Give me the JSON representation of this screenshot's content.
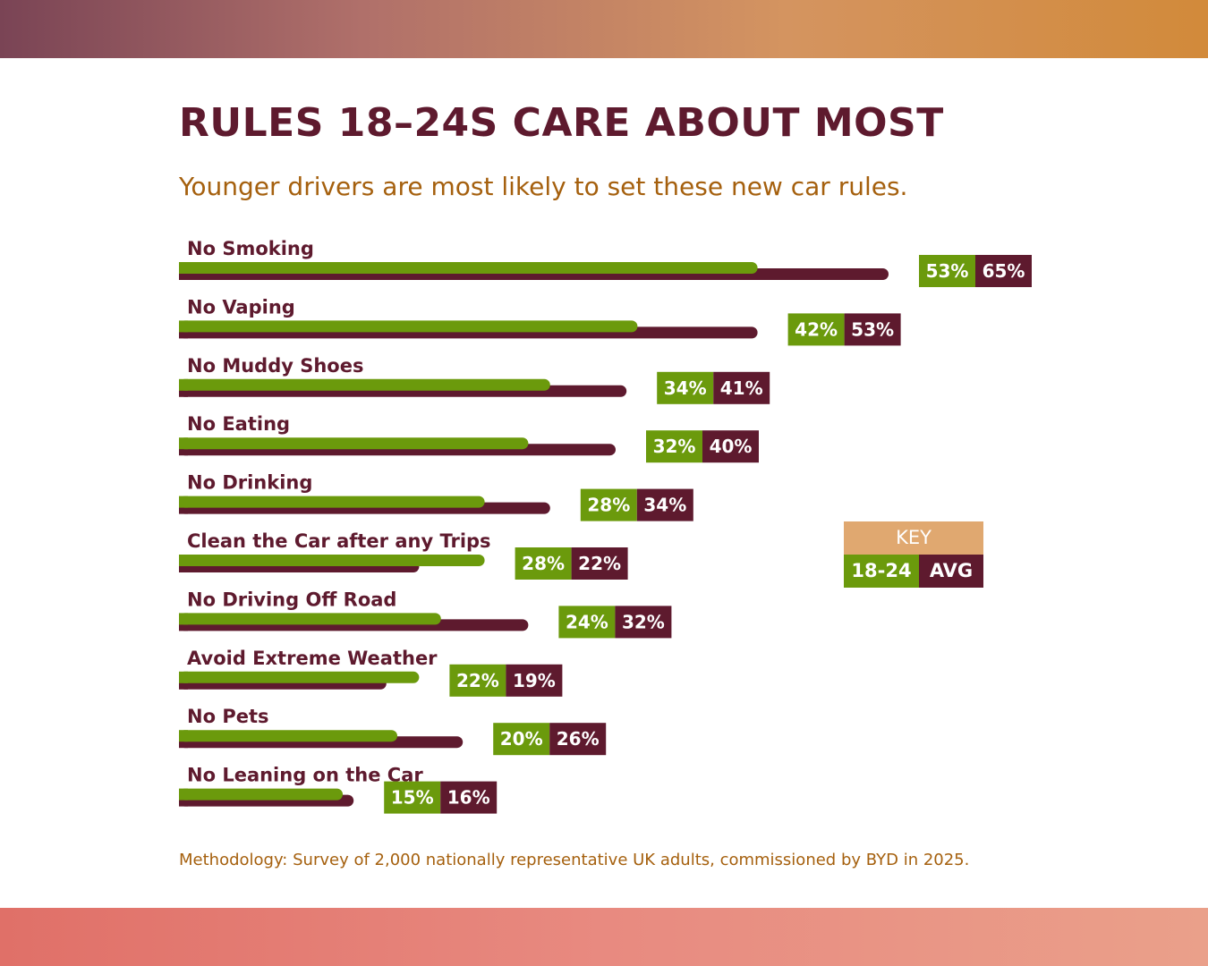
{
  "header": {
    "title": "RULES 18–24S CARE ABOUT MOST",
    "subtitle": "Younger drivers are most likely to set these new car rules."
  },
  "key": {
    "heading": "KEY",
    "young_label": "18-24",
    "avg_label": "AVG"
  },
  "methodology": {
    "label": "Methodology:",
    "text": "Survey of 2,000 nationally representative UK adults, commissioned by BYD in 2025."
  },
  "colors": {
    "young": "#6b9a0c",
    "avg": "#5e1a2e",
    "label_text": "#5e1a2e"
  },
  "chart_data": {
    "type": "bar",
    "orientation": "horizontal",
    "title": "RULES 18–24S CARE ABOUT MOST",
    "subtitle": "Younger drivers are most likely to set these new car rules.",
    "unit": "%",
    "categories": [
      "No Smoking",
      "No Vaping",
      "No Muddy Shoes",
      "No Eating",
      "No Drinking",
      "Clean the Car after any Trips",
      "No Driving Off Road",
      "Avoid Extreme Weather",
      "No Pets",
      "No Leaning on the Car"
    ],
    "series": [
      {
        "name": "18-24",
        "values": [
          53,
          42,
          34,
          32,
          28,
          28,
          24,
          22,
          20,
          15
        ]
      },
      {
        "name": "AVG",
        "values": [
          65,
          53,
          41,
          40,
          34,
          22,
          32,
          19,
          26,
          16
        ]
      }
    ],
    "legend": "right"
  }
}
